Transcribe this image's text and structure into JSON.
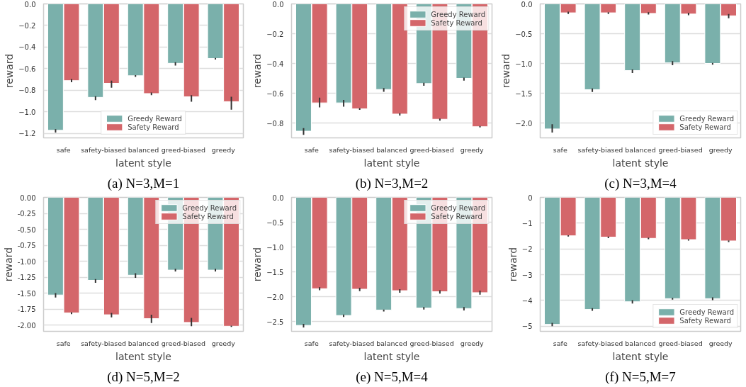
{
  "chart_data": [
    {
      "type": "bar",
      "title": "(a) N=3,M=1",
      "xlabel": "latent style",
      "ylabel": "reward",
      "categories": [
        "safe",
        "safety-biased",
        "balanced",
        "greed-biased",
        "greedy"
      ],
      "ylim": [
        -1.24,
        0
      ],
      "yticks": [
        {
          "value": 0,
          "label": "0.0"
        },
        {
          "value": -0.2,
          "label": "−0.2"
        },
        {
          "value": -0.4,
          "label": "−0.4"
        },
        {
          "value": -0.6,
          "label": "−0.6"
        },
        {
          "value": -0.8,
          "label": "−0.8"
        },
        {
          "value": -1.0,
          "label": "−1.0"
        },
        {
          "value": -1.2,
          "label": "−1.2"
        }
      ],
      "grid": "y",
      "legend": "bottom",
      "series": [
        {
          "name": "Greedy Reward",
          "color": "#7ab0ab",
          "values": [
            -1.17,
            -0.865,
            -0.665,
            -0.55,
            -0.505
          ],
          "errors": [
            [
              -1.19,
              -1.16
            ],
            [
              -0.89,
              -0.855
            ],
            [
              -0.675,
              -0.66
            ],
            [
              -0.57,
              -0.54
            ],
            [
              -0.515,
              -0.5
            ]
          ]
        },
        {
          "name": "Safety Reward",
          "color": "#d4666a",
          "values": [
            -0.71,
            -0.735,
            -0.83,
            -0.86,
            -0.905
          ],
          "errors": [
            [
              -0.725,
              -0.695
            ],
            [
              -0.775,
              -0.71
            ],
            [
              -0.845,
              -0.82
            ],
            [
              -0.905,
              -0.845
            ],
            [
              -0.98,
              -0.86
            ]
          ]
        }
      ]
    },
    {
      "type": "bar",
      "title": "(b) N=3,M=2",
      "xlabel": "latent style",
      "ylabel": "reward",
      "categories": [
        "safe",
        "safety-biased",
        "balanced",
        "greed-biased",
        "greedy"
      ],
      "ylim": [
        -0.9,
        0
      ],
      "yticks": [
        {
          "value": 0,
          "label": "0.0"
        },
        {
          "value": -0.2,
          "label": "−0.2"
        },
        {
          "value": -0.4,
          "label": "−0.4"
        },
        {
          "value": -0.6,
          "label": "−0.6"
        },
        {
          "value": -0.8,
          "label": "−0.8"
        }
      ],
      "grid": "y",
      "legend": "top right",
      "series": [
        {
          "name": "Greedy Reward",
          "color": "#7ab0ab",
          "values": [
            -0.855,
            -0.665,
            -0.575,
            -0.535,
            -0.5
          ],
          "errors": [
            [
              -0.88,
              -0.835
            ],
            [
              -0.69,
              -0.645
            ],
            [
              -0.59,
              -0.565
            ],
            [
              -0.55,
              -0.53
            ],
            [
              -0.515,
              -0.495
            ]
          ]
        },
        {
          "name": "Safety Reward",
          "color": "#d4666a",
          "values": [
            -0.665,
            -0.705,
            -0.74,
            -0.775,
            -0.825
          ],
          "errors": [
            [
              -0.695,
              -0.63
            ],
            [
              -0.712,
              -0.7
            ],
            [
              -0.75,
              -0.735
            ],
            [
              -0.785,
              -0.77
            ],
            [
              -0.83,
              -0.82
            ]
          ]
        }
      ]
    },
    {
      "type": "bar",
      "title": "(c) N=3,M=4",
      "xlabel": "latent style",
      "ylabel": "reward",
      "categories": [
        "safe",
        "safety-biased",
        "balanced",
        "greed-biased",
        "greedy"
      ],
      "ylim": [
        -2.25,
        0
      ],
      "yticks": [
        {
          "value": 0,
          "label": "0.0"
        },
        {
          "value": -0.5,
          "label": "−0.5"
        },
        {
          "value": -1.0,
          "label": "−1.0"
        },
        {
          "value": -1.5,
          "label": "−1.5"
        },
        {
          "value": -2.0,
          "label": "−2.0"
        }
      ],
      "grid": "y",
      "legend": "bottom right",
      "series": [
        {
          "name": "Greedy Reward",
          "color": "#7ab0ab",
          "values": [
            -2.1,
            -1.44,
            -1.12,
            -0.99,
            -1.0
          ],
          "errors": [
            [
              -2.16,
              -2.02
            ],
            [
              -1.48,
              -1.42
            ],
            [
              -1.16,
              -1.1
            ],
            [
              -1.03,
              -0.96
            ],
            [
              -1.02,
              -0.99
            ]
          ]
        },
        {
          "name": "Safety Reward",
          "color": "#d4666a",
          "values": [
            -0.15,
            -0.15,
            -0.16,
            -0.17,
            -0.2
          ],
          "errors": [
            [
              -0.17,
              -0.13
            ],
            [
              -0.17,
              -0.14
            ],
            [
              -0.18,
              -0.14
            ],
            [
              -0.19,
              -0.15
            ],
            [
              -0.24,
              -0.17
            ]
          ]
        }
      ]
    },
    {
      "type": "bar",
      "title": "(d) N=5,M=2",
      "xlabel": "latent style",
      "ylabel": "reward",
      "categories": [
        "safe",
        "safety-biased",
        "balanced",
        "greed-biased",
        "greedy"
      ],
      "ylim": [
        -2.1,
        0
      ],
      "yticks": [
        {
          "value": 0,
          "label": "0.00"
        },
        {
          "value": -0.25,
          "label": "-0.25"
        },
        {
          "value": -0.5,
          "label": "-0.50"
        },
        {
          "value": -0.75,
          "label": "-0.75"
        },
        {
          "value": -1.0,
          "label": "-1.00"
        },
        {
          "value": -1.25,
          "label": "-1.25"
        },
        {
          "value": -1.5,
          "label": "-1.50"
        },
        {
          "value": -1.75,
          "label": "-1.75"
        },
        {
          "value": -2.0,
          "label": "-2.00"
        }
      ],
      "grid": "y",
      "legend": "top right",
      "series": [
        {
          "name": "Greedy Reward",
          "color": "#7ab0ab",
          "values": [
            -1.53,
            -1.3,
            -1.22,
            -1.14,
            -1.14
          ],
          "errors": [
            [
              -1.57,
              -1.5
            ],
            [
              -1.34,
              -1.28
            ],
            [
              -1.26,
              -1.19
            ],
            [
              -1.16,
              -1.12
            ],
            [
              -1.16,
              -1.12
            ]
          ]
        },
        {
          "name": "Safety Reward",
          "color": "#d4666a",
          "values": [
            -1.81,
            -1.84,
            -1.9,
            -1.96,
            -2.02
          ],
          "errors": [
            [
              -1.83,
              -1.8
            ],
            [
              -1.88,
              -1.81
            ],
            [
              -1.97,
              -1.84
            ],
            [
              -2.02,
              -1.89
            ],
            [
              -2.03,
              -2.01
            ]
          ]
        }
      ]
    },
    {
      "type": "bar",
      "title": "(e) N=5,M=4",
      "xlabel": "latent style",
      "ylabel": "reward",
      "categories": [
        "safe",
        "safety-biased",
        "balanced",
        "greed-biased",
        "greedy"
      ],
      "ylim": [
        -2.7,
        0
      ],
      "yticks": [
        {
          "value": 0,
          "label": "0.0"
        },
        {
          "value": -0.5,
          "label": "−0.5"
        },
        {
          "value": -1.0,
          "label": "−1.0"
        },
        {
          "value": -1.5,
          "label": "−1.5"
        },
        {
          "value": -2.0,
          "label": "−2.0"
        },
        {
          "value": -2.5,
          "label": "−2.5"
        }
      ],
      "grid": "y",
      "legend": "top right",
      "series": [
        {
          "name": "Greedy Reward",
          "color": "#7ab0ab",
          "values": [
            -2.58,
            -2.38,
            -2.27,
            -2.23,
            -2.24
          ],
          "errors": [
            [
              -2.62,
              -2.55
            ],
            [
              -2.41,
              -2.36
            ],
            [
              -2.3,
              -2.26
            ],
            [
              -2.26,
              -2.21
            ],
            [
              -2.28,
              -2.21
            ]
          ]
        },
        {
          "name": "Safety Reward",
          "color": "#d4666a",
          "values": [
            -1.84,
            -1.85,
            -1.88,
            -1.9,
            -1.92
          ],
          "errors": [
            [
              -1.87,
              -1.81
            ],
            [
              -1.89,
              -1.82
            ],
            [
              -1.92,
              -1.85
            ],
            [
              -1.94,
              -1.87
            ],
            [
              -1.96,
              -1.88
            ]
          ]
        }
      ]
    },
    {
      "type": "bar",
      "title": "(f) N=5,M=7",
      "xlabel": "latent style",
      "ylabel": "reward",
      "categories": [
        "safe",
        "safety-biased",
        "balanced",
        "greed-biased",
        "greedy"
      ],
      "ylim": [
        -5.2,
        0
      ],
      "yticks": [
        0,
        {
          "value": -1,
          "label": "−1"
        },
        {
          "value": -2,
          "label": "−2"
        },
        {
          "value": -3,
          "label": "−3"
        },
        {
          "value": -4,
          "label": "−4"
        },
        {
          "value": -5,
          "label": "−5"
        }
      ],
      "grid": "y",
      "legend": "bottom right",
      "series": [
        {
          "name": "Greedy Reward",
          "color": "#7ab0ab",
          "values": [
            -4.93,
            -4.35,
            -4.05,
            -3.93,
            -3.93
          ],
          "errors": [
            [
              -5.0,
              -4.87
            ],
            [
              -4.4,
              -4.3
            ],
            [
              -4.12,
              -3.99
            ],
            [
              -3.97,
              -3.9
            ],
            [
              -3.99,
              -3.88
            ]
          ]
        },
        {
          "name": "Safety Reward",
          "color": "#d4666a",
          "values": [
            -1.49,
            -1.54,
            -1.59,
            -1.64,
            -1.69
          ],
          "errors": [
            [
              -1.52,
              -1.47
            ],
            [
              -1.58,
              -1.52
            ],
            [
              -1.62,
              -1.56
            ],
            [
              -1.68,
              -1.62
            ],
            [
              -1.73,
              -1.67
            ]
          ]
        }
      ]
    }
  ]
}
